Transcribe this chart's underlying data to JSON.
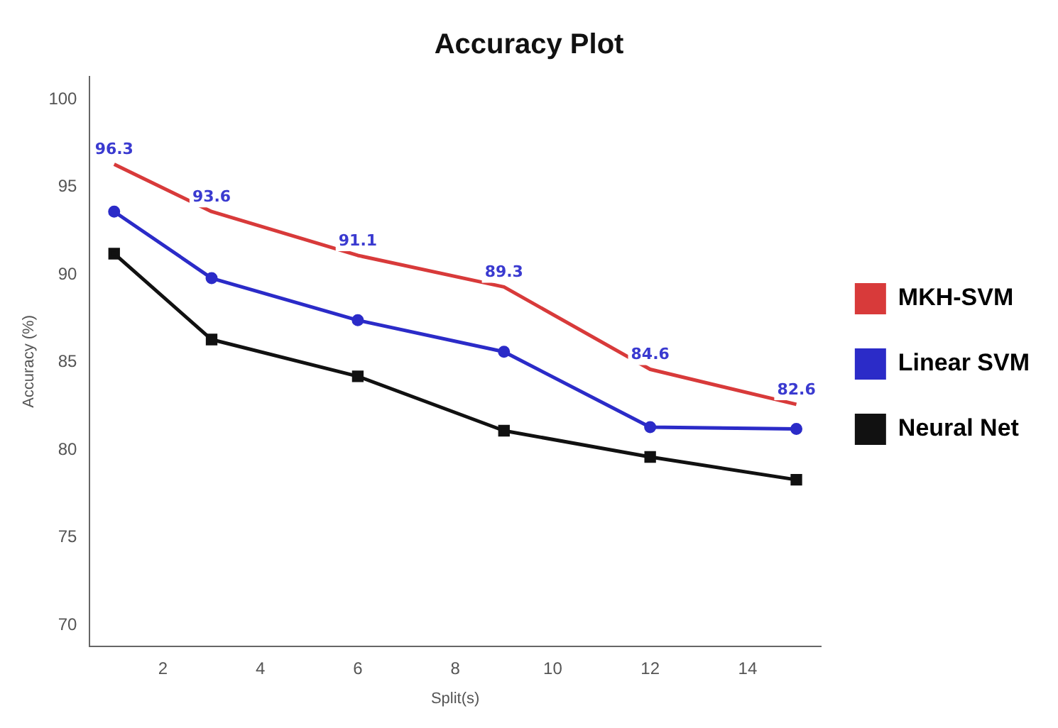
{
  "chart_data": {
    "type": "line",
    "title": "Accuracy Plot",
    "xlabel": "Split(s)",
    "ylabel": "Accuracy (%)",
    "x": [
      1,
      3,
      6,
      9,
      12,
      15
    ],
    "series": [
      {
        "name": "MKH-SVM",
        "color": "#d83a3a",
        "marker": "none",
        "data_labels": true,
        "values": [
          96.3,
          93.6,
          91.1,
          89.3,
          84.6,
          82.6
        ]
      },
      {
        "name": "Linear SVM",
        "color": "#2b2bc8",
        "marker": "circle",
        "values": [
          93.6,
          89.8,
          87.4,
          85.6,
          81.3,
          81.2
        ]
      },
      {
        "name": "Neural Net",
        "color": "#111111",
        "marker": "square",
        "values": [
          91.2,
          86.3,
          84.2,
          81.1,
          79.6,
          78.3
        ]
      }
    ],
    "xlim": [
      0.5,
      15.5
    ],
    "xticks": [
      2,
      4,
      6,
      8,
      10,
      12,
      14
    ],
    "ylim": [
      68.8,
      101.3
    ],
    "yticks": [
      70,
      75,
      80,
      85,
      90,
      95,
      100
    ],
    "grid": false,
    "legend": "right",
    "line_style": "solid"
  }
}
